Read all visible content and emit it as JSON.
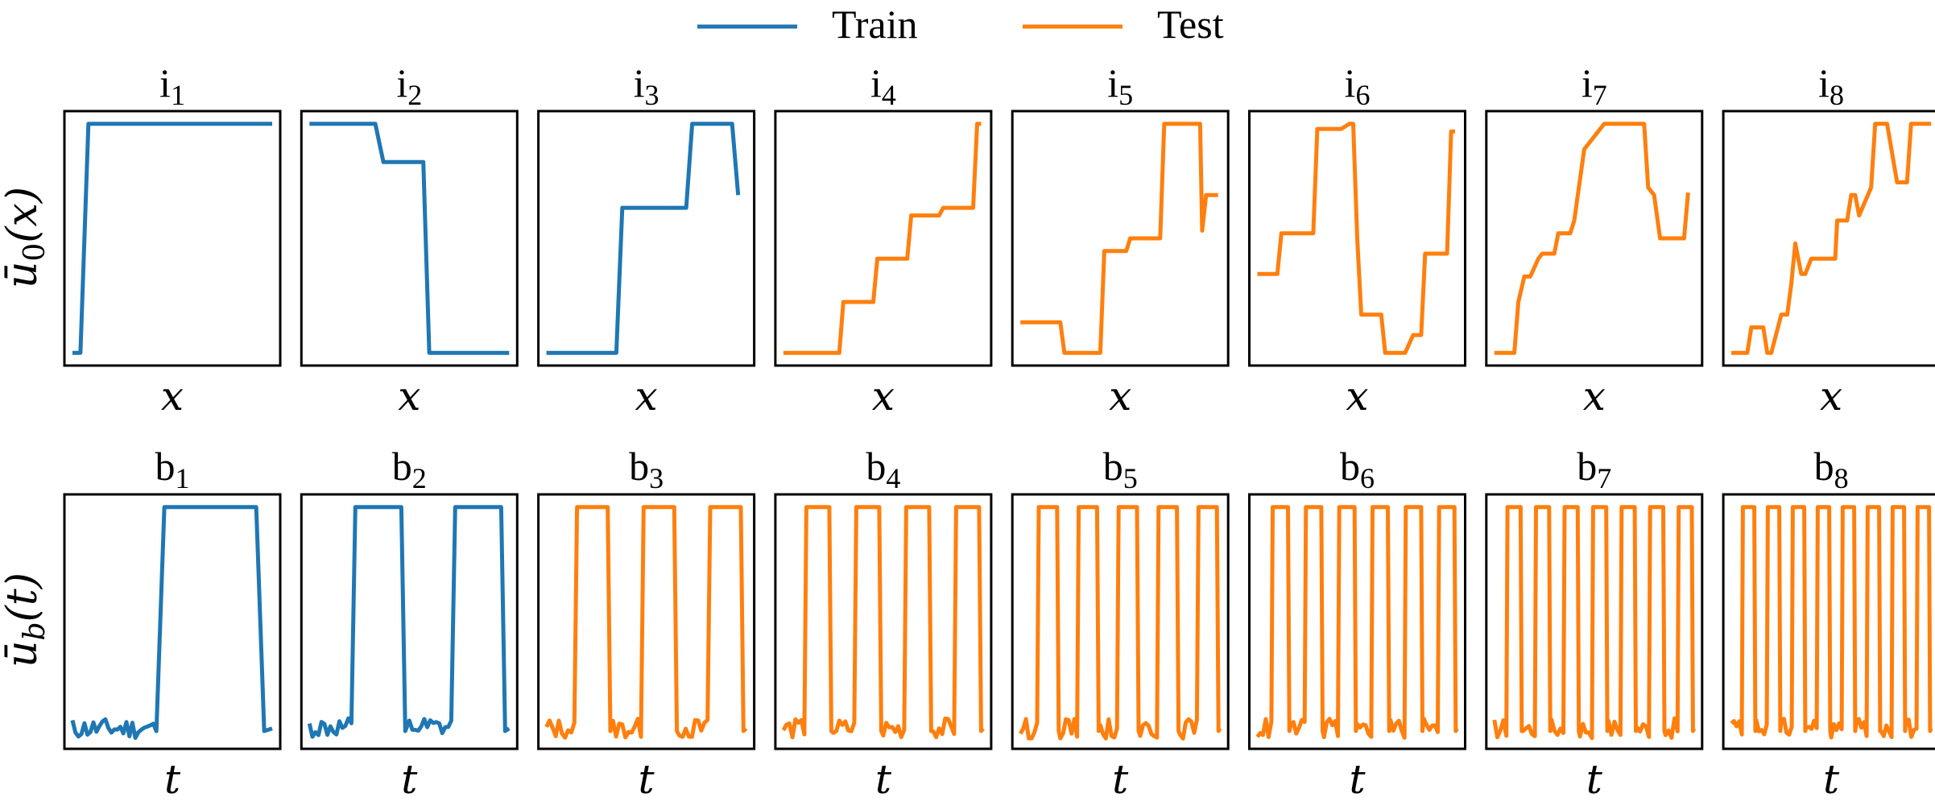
{
  "legend": {
    "placement": "top-center",
    "items": [
      {
        "label": "Train",
        "color": "#1f77b4"
      },
      {
        "label": "Test",
        "color": "#ff7f0e"
      }
    ]
  },
  "colors": {
    "train": "#1f77b4",
    "test": "#ff7f0e",
    "frame": "#000000"
  },
  "rows": [
    {
      "ylabel_base": "ū",
      "ylabel_sub": "0",
      "ylabel_arg": "(x)",
      "xlabel": "x"
    },
    {
      "ylabel_base": "ū",
      "ylabel_sub": "b",
      "ylabel_arg": "(t)",
      "xlabel": "t"
    }
  ],
  "chart_data": [
    {
      "type": "line",
      "title": "i",
      "title_sub": "1",
      "set": "train",
      "xlabel": "x",
      "x": [
        0,
        0.04,
        0.08,
        1
      ],
      "y": [
        0.05,
        0.05,
        0.95,
        0.95
      ]
    },
    {
      "type": "line",
      "title": "i",
      "title_sub": "2",
      "set": "train",
      "xlabel": "x",
      "x": [
        0,
        0.33,
        0.37,
        0.57,
        0.6,
        1
      ],
      "y": [
        0.95,
        0.95,
        0.8,
        0.8,
        0.05,
        0.05
      ]
    },
    {
      "type": "line",
      "title": "i",
      "title_sub": "3",
      "set": "train",
      "xlabel": "x",
      "x": [
        0,
        0.35,
        0.38,
        0.7,
        0.73,
        0.93,
        0.96
      ],
      "y": [
        0.05,
        0.05,
        0.62,
        0.62,
        0.95,
        0.95,
        0.67
      ]
    },
    {
      "type": "line",
      "title": "i",
      "title_sub": "4",
      "set": "test",
      "xlabel": "x",
      "x": [
        0,
        0.28,
        0.3,
        0.45,
        0.47,
        0.62,
        0.64,
        0.78,
        0.8,
        0.95,
        0.97,
        0.99
      ],
      "y": [
        0.05,
        0.05,
        0.25,
        0.25,
        0.42,
        0.42,
        0.59,
        0.59,
        0.62,
        0.62,
        0.95,
        0.95
      ]
    },
    {
      "type": "line",
      "title": "i",
      "title_sub": "5",
      "set": "test",
      "xlabel": "x",
      "x": [
        0,
        0.2,
        0.22,
        0.4,
        0.42,
        0.53,
        0.55,
        0.7,
        0.72,
        0.9,
        0.91,
        0.93,
        0.95,
        0.99
      ],
      "y": [
        0.17,
        0.17,
        0.05,
        0.05,
        0.45,
        0.45,
        0.5,
        0.5,
        0.95,
        0.95,
        0.53,
        0.67,
        0.67,
        0.67
      ]
    },
    {
      "type": "line",
      "title": "i",
      "title_sub": "6",
      "set": "test",
      "xlabel": "x",
      "x": [
        0,
        0.1,
        0.12,
        0.28,
        0.3,
        0.42,
        0.46,
        0.48,
        0.5,
        0.52,
        0.62,
        0.64,
        0.74,
        0.78,
        0.82,
        0.84,
        0.95,
        0.97,
        0.99
      ],
      "y": [
        0.36,
        0.36,
        0.52,
        0.52,
        0.93,
        0.93,
        0.95,
        0.95,
        0.5,
        0.2,
        0.2,
        0.05,
        0.05,
        0.12,
        0.12,
        0.44,
        0.44,
        0.92,
        0.92
      ]
    },
    {
      "type": "line",
      "title": "i",
      "title_sub": "7",
      "set": "test",
      "xlabel": "x",
      "x": [
        0,
        0.1,
        0.12,
        0.15,
        0.18,
        0.22,
        0.24,
        0.3,
        0.32,
        0.38,
        0.4,
        0.45,
        0.48,
        0.55,
        0.6,
        0.75,
        0.77,
        0.8,
        0.83,
        0.95,
        0.97
      ],
      "y": [
        0.05,
        0.05,
        0.25,
        0.35,
        0.35,
        0.42,
        0.44,
        0.44,
        0.52,
        0.52,
        0.57,
        0.85,
        0.88,
        0.95,
        0.95,
        0.95,
        0.7,
        0.67,
        0.5,
        0.5,
        0.68
      ]
    },
    {
      "type": "line",
      "title": "i",
      "title_sub": "8",
      "set": "test",
      "xlabel": "x",
      "x": [
        0,
        0.08,
        0.1,
        0.16,
        0.18,
        0.2,
        0.25,
        0.28,
        0.3,
        0.32,
        0.35,
        0.37,
        0.4,
        0.42,
        0.44,
        0.52,
        0.53,
        0.58,
        0.6,
        0.62,
        0.64,
        0.7,
        0.72,
        0.75,
        0.78,
        0.83,
        0.88,
        0.9,
        1
      ],
      "y": [
        0.05,
        0.05,
        0.15,
        0.15,
        0.05,
        0.05,
        0.2,
        0.2,
        0.32,
        0.48,
        0.36,
        0.36,
        0.42,
        0.42,
        0.42,
        0.42,
        0.57,
        0.57,
        0.67,
        0.67,
        0.59,
        0.7,
        0.95,
        0.95,
        0.95,
        0.72,
        0.72,
        0.95,
        0.95
      ]
    },
    {
      "type": "line",
      "title": "b",
      "title_sub": "1",
      "set": "train",
      "xlabel": "t",
      "cycles": 1
    },
    {
      "type": "line",
      "title": "b",
      "title_sub": "2",
      "set": "train",
      "xlabel": "t",
      "cycles": 2
    },
    {
      "type": "line",
      "title": "b",
      "title_sub": "3",
      "set": "test",
      "xlabel": "t",
      "cycles": 3
    },
    {
      "type": "line",
      "title": "b",
      "title_sub": "4",
      "set": "test",
      "xlabel": "t",
      "cycles": 4
    },
    {
      "type": "line",
      "title": "b",
      "title_sub": "5",
      "set": "test",
      "xlabel": "t",
      "cycles": 5
    },
    {
      "type": "line",
      "title": "b",
      "title_sub": "6",
      "set": "test",
      "xlabel": "t",
      "cycles": 6
    },
    {
      "type": "line",
      "title": "b",
      "title_sub": "7",
      "set": "test",
      "xlabel": "t",
      "cycles": 7
    },
    {
      "type": "line",
      "title": "b",
      "title_sub": "8",
      "set": "test",
      "xlabel": "t",
      "cycles": 8
    }
  ]
}
